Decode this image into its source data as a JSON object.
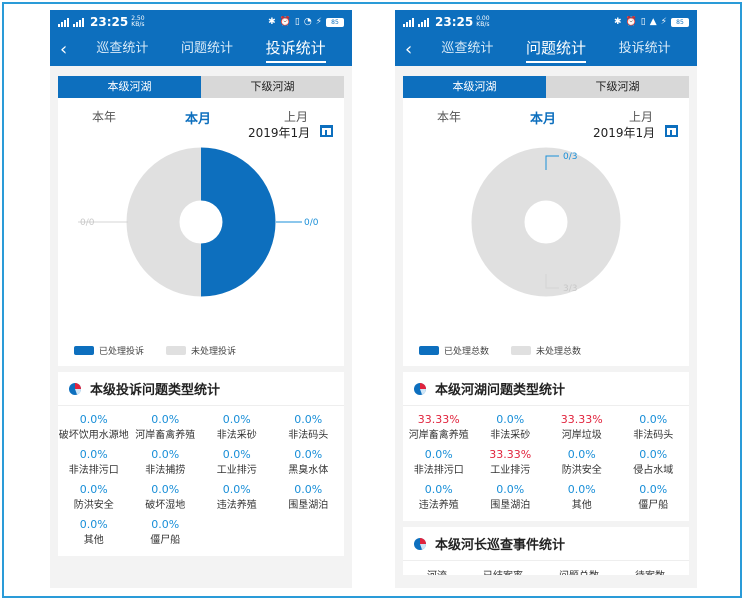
{
  "left": {
    "status": {
      "time": "23:25",
      "speed_top": "2.50",
      "speed_bottom": "KB/s",
      "battery": "85"
    },
    "nav": {
      "tabs": [
        "巡查统计",
        "问题统计",
        "投诉统计"
      ],
      "active": 2
    },
    "segment": [
      "本级河湖",
      "下级河湖"
    ],
    "period": {
      "year": "本年",
      "month": "本月",
      "last_month": "上月",
      "date": "2019年1月"
    },
    "donut": {
      "left_label": "0/0",
      "right_label": "0/0",
      "handled_fraction": 0.5,
      "colors": {
        "handled": "#0d6fbe",
        "unhandled": "#e0e0e0"
      }
    },
    "legend": [
      "已处理投诉",
      "未处理投诉"
    ],
    "card_title": "本级投诉问题类型统计",
    "stats": [
      {
        "value": "0.0%",
        "label": "破坏饮用水源地"
      },
      {
        "value": "0.0%",
        "label": "河岸畜禽养殖"
      },
      {
        "value": "0.0%",
        "label": "非法采砂"
      },
      {
        "value": "0.0%",
        "label": "非法码头"
      },
      {
        "value": "0.0%",
        "label": "非法排污口"
      },
      {
        "value": "0.0%",
        "label": "非法捕捞"
      },
      {
        "value": "0.0%",
        "label": "工业排污"
      },
      {
        "value": "0.0%",
        "label": "黑臭水体"
      },
      {
        "value": "0.0%",
        "label": "防洪安全"
      },
      {
        "value": "0.0%",
        "label": "破坏湿地"
      },
      {
        "value": "0.0%",
        "label": "违法养殖"
      },
      {
        "value": "0.0%",
        "label": "围垦湖泊"
      },
      {
        "value": "0.0%",
        "label": "其他"
      },
      {
        "value": "0.0%",
        "label": "僵尸船"
      }
    ]
  },
  "right": {
    "status": {
      "time": "23:25",
      "speed_top": "0.00",
      "speed_bottom": "KB/s",
      "battery": "85"
    },
    "nav": {
      "tabs": [
        "巡查统计",
        "问题统计",
        "投诉统计"
      ],
      "active": 1
    },
    "segment": [
      "本级河湖",
      "下级河湖"
    ],
    "period": {
      "year": "本年",
      "month": "本月",
      "last_month": "上月",
      "date": "2019年1月"
    },
    "donut": {
      "top_label": "0/3",
      "bottom_label": "3/3",
      "handled_fraction": 0.0,
      "colors": {
        "handled": "#0d6fbe",
        "unhandled": "#e0e0e0"
      }
    },
    "legend": [
      "已处理总数",
      "未处理总数"
    ],
    "card_title": "本级河湖问题类型统计",
    "stats": [
      {
        "value": "33.33%",
        "label": "河岸畜禽养殖",
        "red": true
      },
      {
        "value": "0.0%",
        "label": "非法采砂"
      },
      {
        "value": "33.33%",
        "label": "河岸垃圾",
        "red": true
      },
      {
        "value": "0.0%",
        "label": "非法码头"
      },
      {
        "value": "0.0%",
        "label": "非法排污口"
      },
      {
        "value": "33.33%",
        "label": "工业排污",
        "red": true
      },
      {
        "value": "0.0%",
        "label": "防洪安全"
      },
      {
        "value": "0.0%",
        "label": "侵占水域"
      },
      {
        "value": "0.0%",
        "label": "违法养殖"
      },
      {
        "value": "0.0%",
        "label": "围垦湖泊"
      },
      {
        "value": "0.0%",
        "label": "其他"
      },
      {
        "value": "0.0%",
        "label": "僵尸船"
      }
    ],
    "card2_title": "本级河长巡查事件统计",
    "card2_columns": [
      "河流",
      "已结案率",
      "问题总数",
      "待案数"
    ]
  }
}
